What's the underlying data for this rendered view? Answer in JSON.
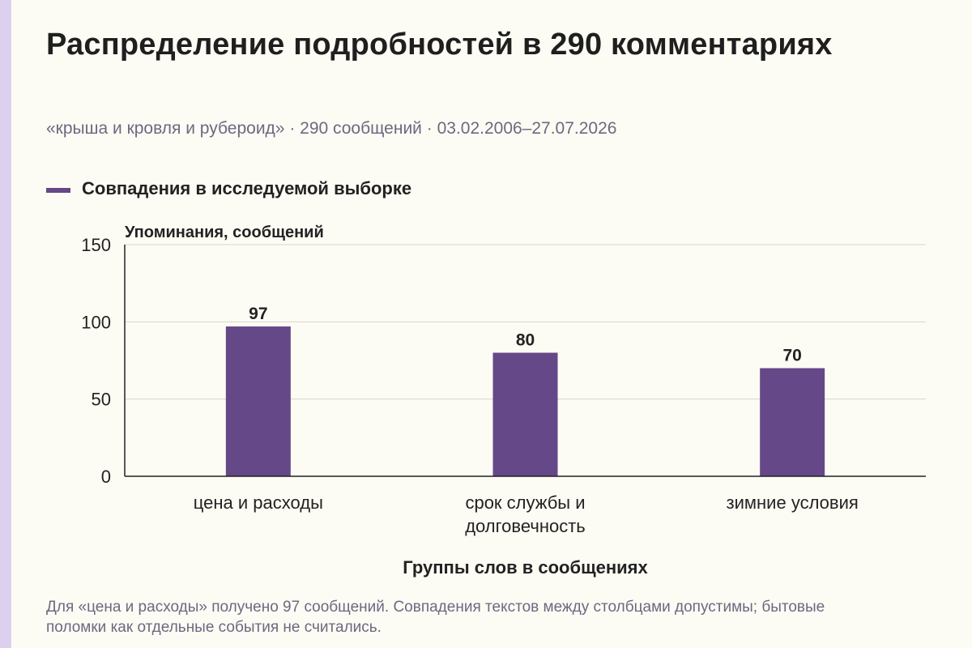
{
  "header": {
    "title": "Распределение подробностей в 290 комментариях",
    "subtitle": "«крыша и кровля и рубероид» · 290 сообщений · 03.02.2006–27.07.2026"
  },
  "legend": {
    "label": "Совпадения в исследуемой выборке",
    "color": "#654887"
  },
  "chart_data": {
    "type": "bar",
    "categories": [
      [
        "цена и расходы"
      ],
      [
        "срок службы и",
        "долговечность"
      ],
      [
        "зимние условия"
      ]
    ],
    "series": [
      {
        "name": "Совпадения в исследуемой выборке",
        "values": [
          97,
          80,
          70
        ],
        "color": "#654887"
      }
    ],
    "ylabel": "Упоминания, сообщений",
    "xlabel": "Группы слов в сообщениях",
    "ylim": [
      0,
      150
    ],
    "yticks": [
      0,
      50,
      100,
      150
    ],
    "grid": true,
    "legend_position": "top-left"
  },
  "footnote": "Для «цена и расходы» получено 97 сообщений. Совпадения текстов между столбцами допустимы; бытовые поломки как отдельные события не считались."
}
